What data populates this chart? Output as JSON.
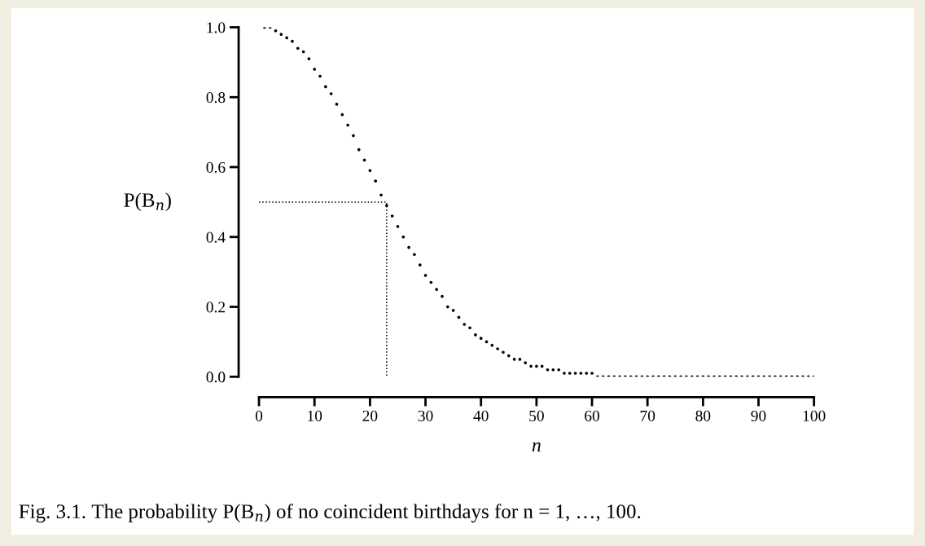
{
  "chart_data": {
    "type": "scatter",
    "ylabel": "P(B$_{n}$)",
    "xlabel": "n",
    "grid": false,
    "legend": false,
    "xlim": [
      0,
      100
    ],
    "xticks": [
      0,
      10,
      20,
      30,
      40,
      50,
      60,
      70,
      80,
      90,
      100
    ],
    "ylim": [
      0,
      1
    ],
    "yticks": [
      {
        "value": 0,
        "label": "0.0"
      },
      {
        "value": 0.2,
        "label": "0.2"
      },
      {
        "value": 0.4,
        "label": "0.4"
      },
      {
        "value": 0.6,
        "label": "0.6"
      },
      {
        "value": 0.8,
        "label": "0.8"
      },
      {
        "value": 1,
        "label": "1.0"
      }
    ],
    "series": [
      {
        "marker": "circle",
        "color": "#000000",
        "x": [
          1,
          2,
          3,
          4,
          5,
          6,
          7,
          8,
          9,
          10,
          11,
          12,
          13,
          14,
          15,
          16,
          17,
          18,
          19,
          20,
          21,
          22,
          23,
          24,
          25,
          26,
          27,
          28,
          29,
          30,
          31,
          32,
          33,
          34,
          35,
          36,
          37,
          38,
          39,
          40,
          41,
          42,
          43,
          44,
          45,
          46,
          47,
          48,
          49,
          50,
          51,
          52,
          53,
          54,
          55,
          56,
          57,
          58,
          59,
          60,
          61,
          62,
          63,
          64,
          65,
          66,
          67,
          68,
          69,
          70,
          71,
          72,
          73,
          74,
          75,
          76,
          77,
          78,
          79,
          80,
          81,
          82,
          83,
          84,
          85,
          86,
          87,
          88,
          89,
          90,
          91,
          92,
          93,
          94,
          95,
          96,
          97,
          98,
          99,
          100
        ],
        "values": [
          1.0,
          1.0,
          0.99,
          0.98,
          0.97,
          0.96,
          0.94,
          0.93,
          0.91,
          0.88,
          0.86,
          0.83,
          0.81,
          0.78,
          0.75,
          0.72,
          0.69,
          0.65,
          0.62,
          0.59,
          0.56,
          0.52,
          0.49,
          0.46,
          0.43,
          0.4,
          0.37,
          0.35,
          0.32,
          0.29,
          0.27,
          0.25,
          0.23,
          0.2,
          0.19,
          0.17,
          0.15,
          0.14,
          0.12,
          0.11,
          0.1,
          0.09,
          0.08,
          0.07,
          0.06,
          0.05,
          0.05,
          0.04,
          0.03,
          0.03,
          0.03,
          0.02,
          0.02,
          0.02,
          0.01,
          0.01,
          0.01,
          0.01,
          0.01,
          0.01,
          0.0,
          0.0,
          0.0,
          0.0,
          0.0,
          0.0,
          0.0,
          0.0,
          0.0,
          0.0,
          0.0,
          0.0,
          0.0,
          0.0,
          0.0,
          0.0,
          0.0,
          0.0,
          0.0,
          0.0,
          0.0,
          0.0,
          0.0,
          0.0,
          0.0,
          0.0,
          0.0,
          0.0,
          0.0,
          0.0,
          0.0,
          0.0,
          0.0,
          0.0,
          0.0,
          0.0,
          0.0,
          0.0,
          0.0,
          0.0
        ]
      },
      {
        "type": "line",
        "color": "#000000",
        "line_style": "dotted",
        "x": [
          0,
          23,
          23
        ],
        "values": [
          0.5,
          0.5,
          0
        ]
      }
    ],
    "annotations": [
      "Fig. 3.1. The probability P(B$_{n}$) of no coincident birthdays for n = 1, …, 100."
    ]
  }
}
